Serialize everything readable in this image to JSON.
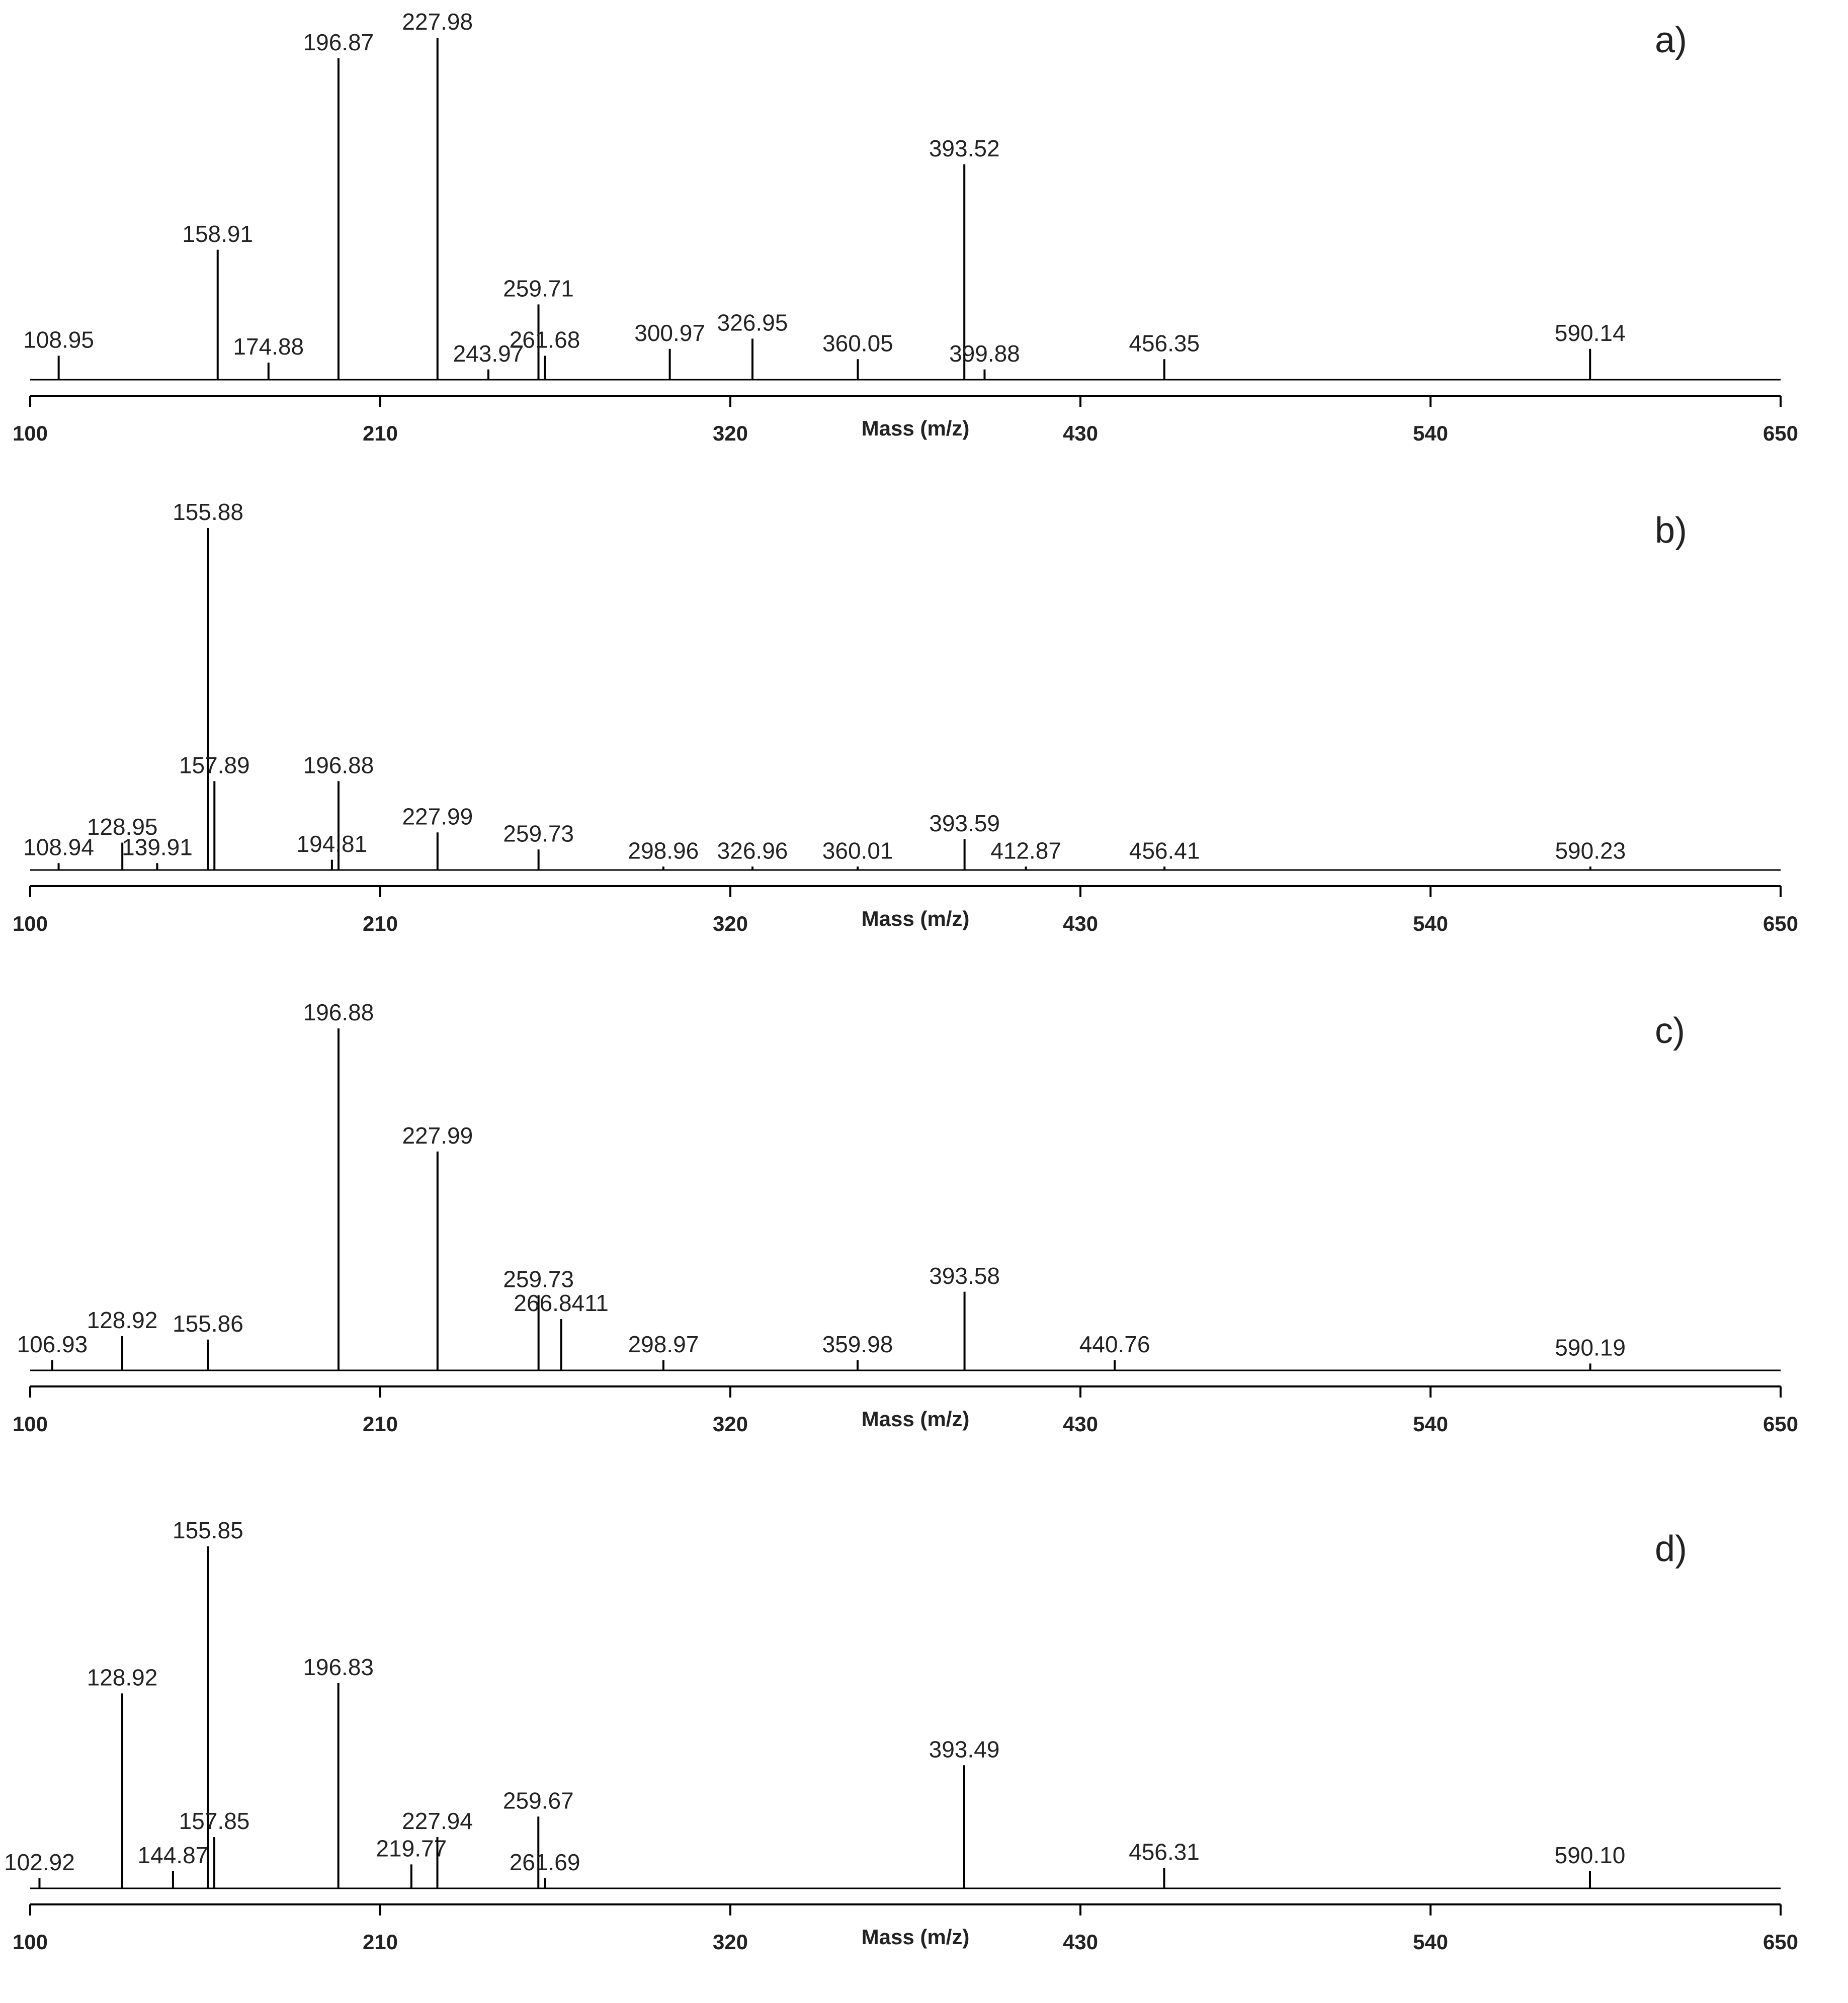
{
  "chart_data": [
    {
      "type": "bar",
      "panel_label": "a)",
      "x_label": "Mass (m/z)",
      "color": "#000000",
      "xlim": [
        100,
        650
      ],
      "xticks": [
        100,
        210,
        320,
        430,
        540,
        650
      ],
      "ylim": [
        0,
        100
      ],
      "x": [
        108.95,
        158.91,
        174.88,
        196.87,
        227.98,
        243.97,
        259.71,
        261.68,
        300.97,
        326.95,
        360.05,
        393.52,
        399.88,
        456.35,
        590.14
      ],
      "values": [
        7,
        38,
        5,
        94,
        100,
        3,
        22,
        7,
        9,
        12,
        6,
        63,
        3,
        6,
        9
      ],
      "labels": [
        "108.95",
        "158.91",
        "174.88",
        "196.87",
        "227.98",
        "243.97",
        "259.71",
        "261.68",
        "300.97",
        "326.95",
        "360.05",
        "393.52",
        "399.88",
        "456.35",
        "590.14"
      ]
    },
    {
      "type": "bar",
      "panel_label": "b)",
      "x_label": "Mass (m/z)",
      "color": "#000000",
      "xlim": [
        100,
        650
      ],
      "xticks": [
        100,
        210,
        320,
        430,
        540,
        650
      ],
      "ylim": [
        0,
        100
      ],
      "x": [
        108.94,
        128.95,
        139.91,
        155.88,
        157.89,
        194.81,
        196.88,
        227.99,
        259.73,
        298.96,
        326.96,
        360.01,
        393.59,
        412.87,
        456.41,
        590.23
      ],
      "values": [
        2,
        8,
        2,
        100,
        26,
        3,
        26,
        11,
        6,
        1,
        1,
        1,
        9,
        1,
        1,
        1
      ],
      "labels": [
        "108.94",
        "128.95",
        "139.91",
        "155.88",
        "157.89",
        "194.81",
        "196.88",
        "227.99",
        "259.73",
        "298.96",
        "326.96",
        "360.01",
        "393.59",
        "412.87",
        "456.41",
        "590.23"
      ]
    },
    {
      "type": "bar",
      "panel_label": "c)",
      "x_label": "Mass (m/z)",
      "color": "#000000",
      "xlim": [
        100,
        650
      ],
      "xticks": [
        100,
        210,
        320,
        430,
        540,
        650
      ],
      "ylim": [
        0,
        100
      ],
      "x": [
        106.93,
        128.92,
        155.86,
        196.88,
        227.99,
        259.73,
        266.8411,
        298.97,
        359.98,
        393.58,
        440.76,
        590.19
      ],
      "values": [
        3,
        10,
        9,
        100,
        64,
        22,
        15,
        3,
        3,
        23,
        3,
        2
      ],
      "labels": [
        "106.93",
        "128.92",
        "155.86",
        "196.88",
        "227.99",
        "259.73",
        "266.8411",
        "298.97",
        "359.98",
        "393.58",
        "440.76",
        "590.19"
      ]
    },
    {
      "type": "bar",
      "panel_label": "d)",
      "x_label": "Mass (m/z)",
      "color": "#000000",
      "xlim": [
        100,
        650
      ],
      "xticks": [
        100,
        210,
        320,
        430,
        540,
        650
      ],
      "ylim": [
        0,
        100
      ],
      "x": [
        102.92,
        128.92,
        144.87,
        155.85,
        157.85,
        196.83,
        219.77,
        227.94,
        259.67,
        261.69,
        393.49,
        456.31,
        590.1
      ],
      "values": [
        3,
        57,
        5,
        100,
        15,
        60,
        7,
        15,
        21,
        3,
        36,
        6,
        5
      ],
      "labels": [
        "102.92",
        "128.92",
        "144.87",
        "155.85",
        "157.85",
        "196.83",
        "219.77",
        "227.94",
        "259.67",
        "261.69",
        "393.49",
        "456.31",
        "590.10"
      ]
    }
  ]
}
